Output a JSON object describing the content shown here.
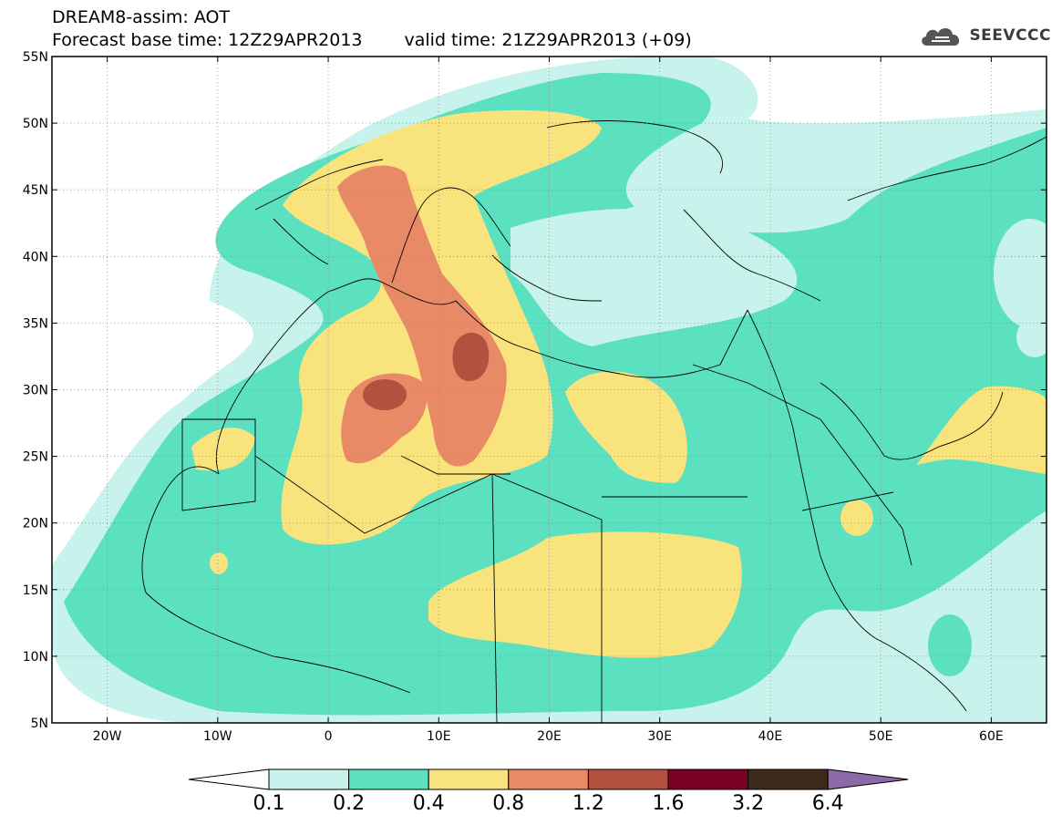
{
  "header": {
    "title": "DREAM8-assim: AOT",
    "base_time": "Forecast base time: 12Z29APR2013",
    "valid_time": "valid time: 21Z29APR2013 (+09)"
  },
  "logo": {
    "text": "SEEVCCC",
    "icon": "cloud-icon"
  },
  "map": {
    "lat_labels": [
      "55N",
      "50N",
      "45N",
      "40N",
      "35N",
      "30N",
      "25N",
      "20N",
      "15N",
      "10N",
      "5N"
    ],
    "lon_labels": [
      "20W",
      "10W",
      "0",
      "10E",
      "20E",
      "30E",
      "40E",
      "50E",
      "60E"
    ]
  },
  "colorbar": {
    "levels": [
      "0.1",
      "0.2",
      "0.4",
      "0.8",
      "1.2",
      "1.6",
      "3.2",
      "6.4"
    ],
    "colors": [
      "#ffffff",
      "#c8f2ec",
      "#5ce1c0",
      "#f8e37c",
      "#e88a66",
      "#b3503f",
      "#7a0026",
      "#3d2a1a",
      "#8c6aa8"
    ]
  }
}
